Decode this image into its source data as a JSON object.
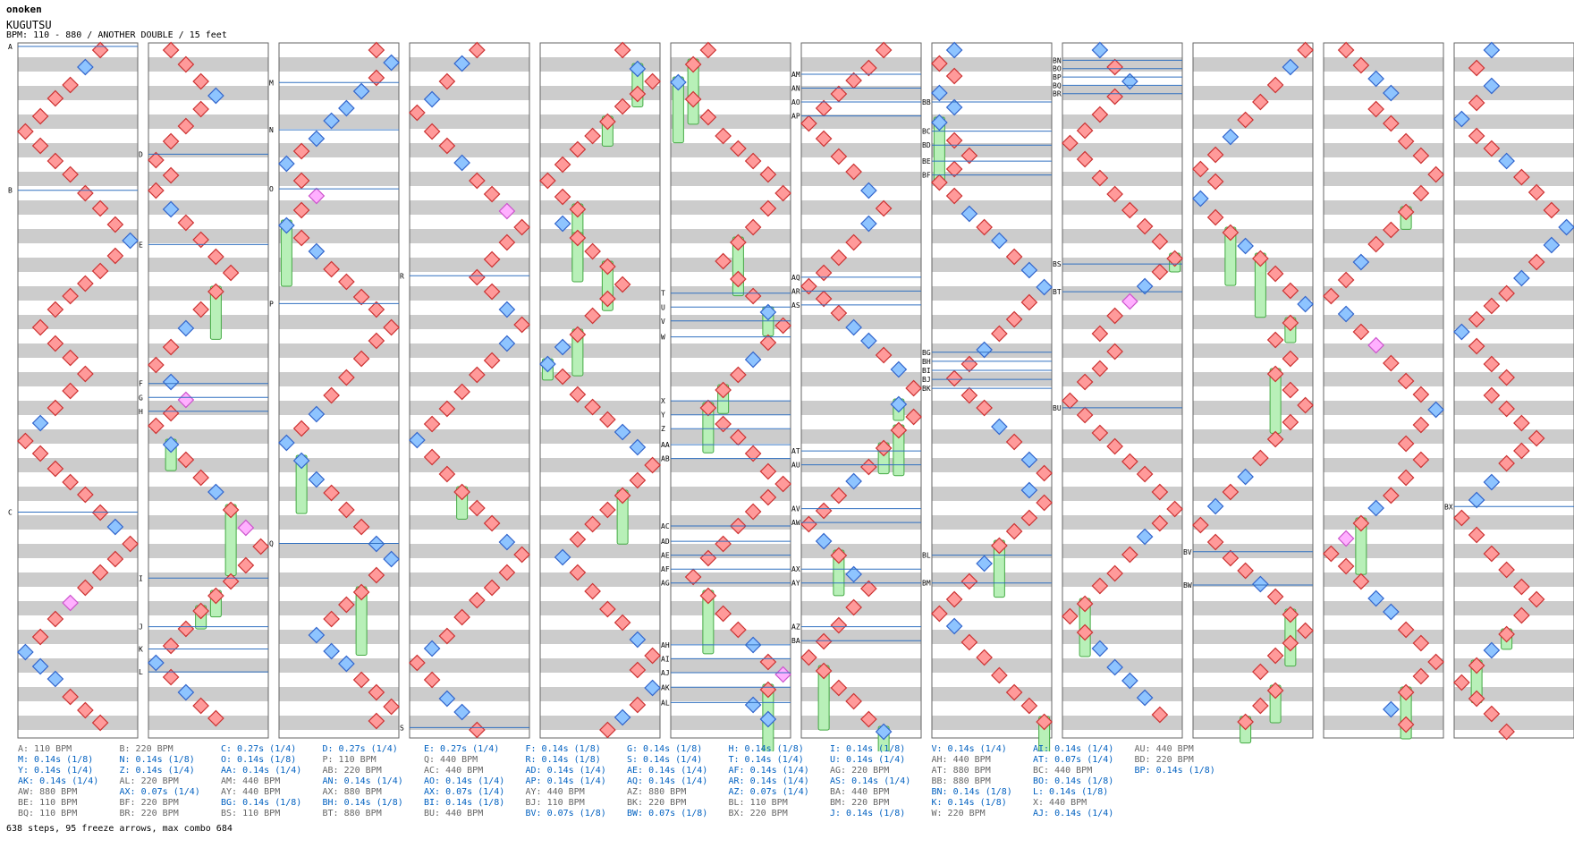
{
  "header": {
    "artist": "onoken",
    "title": "KUGUTSU",
    "info": "BPM: 110 - 880 / ANOTHER DOUBLE / 15 feet"
  },
  "colors": {
    "stripe": "#cccccc",
    "frame": "#666666",
    "marker_line": "#3070c0",
    "arrow_red_fill": "#ff9a9a",
    "arrow_red_stroke": "#cc3333",
    "arrow_blue_fill": "#8ec4ff",
    "arrow_blue_stroke": "#3366cc",
    "arrow_pink_fill": "#ffb0ff",
    "arrow_pink_stroke": "#cc55cc",
    "freeze_fill": "#b8f0b8",
    "freeze_stroke": "#44aa44",
    "stop_text": "#0060c0",
    "bpm_text": "#666666"
  },
  "markers": [
    [
      "A",
      0,
      0.005
    ],
    [
      "B",
      0,
      0.212
    ],
    [
      "C",
      0,
      0.675
    ],
    [
      "D",
      1,
      0.16
    ],
    [
      "E",
      1,
      0.29
    ],
    [
      "F",
      1,
      0.49
    ],
    [
      "G",
      1,
      0.51
    ],
    [
      "H",
      1,
      0.53
    ],
    [
      "I",
      1,
      0.77
    ],
    [
      "J",
      1,
      0.84
    ],
    [
      "K",
      1,
      0.872
    ],
    [
      "L",
      1,
      0.905
    ],
    [
      "M",
      2,
      0.057
    ],
    [
      "N",
      2,
      0.125
    ],
    [
      "O",
      2,
      0.21
    ],
    [
      "P",
      2,
      0.375
    ],
    [
      "Q",
      2,
      0.72
    ],
    [
      "R",
      3,
      0.335
    ],
    [
      "S",
      3,
      0.985
    ],
    [
      "T",
      5,
      0.36
    ],
    [
      "U",
      5,
      0.38
    ],
    [
      "V",
      5,
      0.4
    ],
    [
      "W",
      5,
      0.423
    ],
    [
      "X",
      5,
      0.515
    ],
    [
      "Y",
      5,
      0.535
    ],
    [
      "Z",
      5,
      0.555
    ],
    [
      "AA",
      5,
      0.578
    ],
    [
      "AB",
      5,
      0.598
    ],
    [
      "AC",
      5,
      0.695
    ],
    [
      "AD",
      5,
      0.717
    ],
    [
      "AE",
      5,
      0.737
    ],
    [
      "AF",
      5,
      0.757
    ],
    [
      "AG",
      5,
      0.777
    ],
    [
      "AH",
      5,
      0.866
    ],
    [
      "AI",
      5,
      0.886
    ],
    [
      "AJ",
      5,
      0.906
    ],
    [
      "AK",
      5,
      0.927
    ],
    [
      "AL",
      5,
      0.949
    ],
    [
      "AM",
      6,
      0.045
    ],
    [
      "AN",
      6,
      0.065
    ],
    [
      "AO",
      6,
      0.085
    ],
    [
      "AP",
      6,
      0.105
    ],
    [
      "AQ",
      6,
      0.337
    ],
    [
      "AR",
      6,
      0.357
    ],
    [
      "AS",
      6,
      0.377
    ],
    [
      "AT",
      6,
      0.587
    ],
    [
      "AU",
      6,
      0.607
    ],
    [
      "AV",
      6,
      0.67
    ],
    [
      "AW",
      6,
      0.69
    ],
    [
      "AX",
      6,
      0.757
    ],
    [
      "AY",
      6,
      0.777
    ],
    [
      "AZ",
      6,
      0.84
    ],
    [
      "BA",
      6,
      0.86
    ],
    [
      "BB",
      7,
      0.085
    ],
    [
      "BC",
      7,
      0.127
    ],
    [
      "BD",
      7,
      0.147
    ],
    [
      "BE",
      7,
      0.17
    ],
    [
      "BF",
      7,
      0.19
    ],
    [
      "BG",
      7,
      0.445
    ],
    [
      "BH",
      7,
      0.458
    ],
    [
      "BI",
      7,
      0.471
    ],
    [
      "BJ",
      7,
      0.484
    ],
    [
      "BK",
      7,
      0.497
    ],
    [
      "BL",
      7,
      0.737
    ],
    [
      "BM",
      7,
      0.777
    ],
    [
      "BN",
      8,
      0.025
    ],
    [
      "BO",
      8,
      0.037
    ],
    [
      "BP",
      8,
      0.049
    ],
    [
      "BQ",
      8,
      0.061
    ],
    [
      "BR",
      8,
      0.073
    ],
    [
      "BS",
      8,
      0.318
    ],
    [
      "BT",
      8,
      0.358
    ],
    [
      "BU",
      8,
      0.525
    ],
    [
      "BV",
      9,
      0.732
    ],
    [
      "BW",
      9,
      0.78
    ],
    [
      "BX",
      11,
      0.667
    ]
  ],
  "legend": [
    [
      "A: 110 BPM",
      "bpm"
    ],
    [
      "M: 0.14s (1/8)",
      "stop"
    ],
    [
      "Y: 0.14s (1/4)",
      "stop"
    ],
    [
      "AK: 0.14s (1/4)",
      "stop"
    ],
    [
      "AW: 880 BPM",
      "bpm"
    ],
    [
      "BE: 110 BPM",
      "bpm"
    ],
    [
      "BQ: 110 BPM",
      "bpm"
    ],
    [
      "B: 220 BPM",
      "bpm"
    ],
    [
      "N: 0.14s (1/8)",
      "stop"
    ],
    [
      "Z: 0.14s (1/4)",
      "stop"
    ],
    [
      "AL: 220 BPM",
      "bpm"
    ],
    [
      "AX: 0.07s (1/4)",
      "stop"
    ],
    [
      "BF: 220 BPM",
      "bpm"
    ],
    [
      "BR: 220 BPM",
      "bpm"
    ],
    [
      "C: 0.27s (1/4)",
      "stop"
    ],
    [
      "O: 0.14s (1/8)",
      "stop"
    ],
    [
      "AA: 0.14s (1/4)",
      "stop"
    ],
    [
      "AM: 440 BPM",
      "bpm"
    ],
    [
      "AY: 440 BPM",
      "bpm"
    ],
    [
      "BG: 0.14s (1/8)",
      "stop"
    ],
    [
      "BS: 110 BPM",
      "bpm"
    ],
    [
      "D: 0.27s (1/4)",
      "stop"
    ],
    [
      "P: 110 BPM",
      "bpm"
    ],
    [
      "AB: 220 BPM",
      "bpm"
    ],
    [
      "AN: 0.14s (1/4)",
      "stop"
    ],
    [
      "AX: 880 BPM",
      "bpm"
    ],
    [
      "BH: 0.14s (1/8)",
      "stop"
    ],
    [
      "BT: 880 BPM",
      "bpm"
    ],
    [
      "E: 0.27s (1/4)",
      "stop"
    ],
    [
      "Q: 440 BPM",
      "bpm"
    ],
    [
      "AC: 440 BPM",
      "bpm"
    ],
    [
      "AO: 0.14s (1/4)",
      "stop"
    ],
    [
      "AX: 0.07s (1/4)",
      "stop"
    ],
    [
      "BI: 0.14s (1/8)",
      "stop"
    ],
    [
      "BU: 440 BPM",
      "bpm"
    ],
    [
      "F: 0.14s (1/8)",
      "stop"
    ],
    [
      "R: 0.14s (1/8)",
      "stop"
    ],
    [
      "AD: 0.14s (1/4)",
      "stop"
    ],
    [
      "AP: 0.14s (1/4)",
      "stop"
    ],
    [
      "AY: 440 BPM",
      "bpm"
    ],
    [
      "BJ: 110 BPM",
      "bpm"
    ],
    [
      "BV: 0.07s (1/8)",
      "stop"
    ],
    [
      "G: 0.14s (1/8)",
      "stop"
    ],
    [
      "S: 0.14s (1/4)",
      "stop"
    ],
    [
      "AE: 0.14s (1/4)",
      "stop"
    ],
    [
      "AQ: 0.14s (1/4)",
      "stop"
    ],
    [
      "AZ: 880 BPM",
      "bpm"
    ],
    [
      "BK: 220 BPM",
      "bpm"
    ],
    [
      "BW: 0.07s (1/8)",
      "stop"
    ],
    [
      "H: 0.14s (1/8)",
      "stop"
    ],
    [
      "T: 0.14s (1/4)",
      "stop"
    ],
    [
      "AF: 0.14s (1/4)",
      "stop"
    ],
    [
      "AR: 0.14s (1/4)",
      "stop"
    ],
    [
      "AZ: 0.07s (1/4)",
      "stop"
    ],
    [
      "BL: 110 BPM",
      "bpm"
    ],
    [
      "BX: 220 BPM",
      "bpm"
    ],
    [
      "I: 0.14s (1/8)",
      "stop"
    ],
    [
      "U: 0.14s (1/4)",
      "stop"
    ],
    [
      "AG: 220 BPM",
      "bpm"
    ],
    [
      "AS: 0.14s (1/4)",
      "stop"
    ],
    [
      "BA: 440 BPM",
      "bpm"
    ],
    [
      "BM: 220 BPM",
      "bpm"
    ],
    [
      "J: 0.14s (1/8)",
      "stop"
    ],
    [
      "V: 0.14s (1/4)",
      "stop"
    ],
    [
      "AH: 440 BPM",
      "bpm"
    ],
    [
      "AT: 880 BPM",
      "bpm"
    ],
    [
      "BB: 880 BPM",
      "bpm"
    ],
    [
      "BN: 0.14s (1/8)",
      "stop"
    ],
    [
      "K: 0.14s (1/8)",
      "stop"
    ],
    [
      "W: 220 BPM",
      "bpm"
    ],
    [
      "AI: 0.14s (1/4)",
      "stop"
    ],
    [
      "AT: 0.07s (1/4)",
      "stop"
    ],
    [
      "BC: 440 BPM",
      "bpm"
    ],
    [
      "BO: 0.14s (1/8)",
      "stop"
    ],
    [
      "L: 0.14s (1/8)",
      "stop"
    ],
    [
      "X: 440 BPM",
      "bpm"
    ],
    [
      "AJ: 0.14s (1/4)",
      "stop"
    ],
    [
      "AU: 440 BPM",
      "bpm"
    ],
    [
      "BD: 220 BPM",
      "bpm"
    ],
    [
      "BP: 0.14s (1/8)",
      "stop"
    ]
  ],
  "footer": "638 steps, 95 freeze arrows, max combo 684"
}
